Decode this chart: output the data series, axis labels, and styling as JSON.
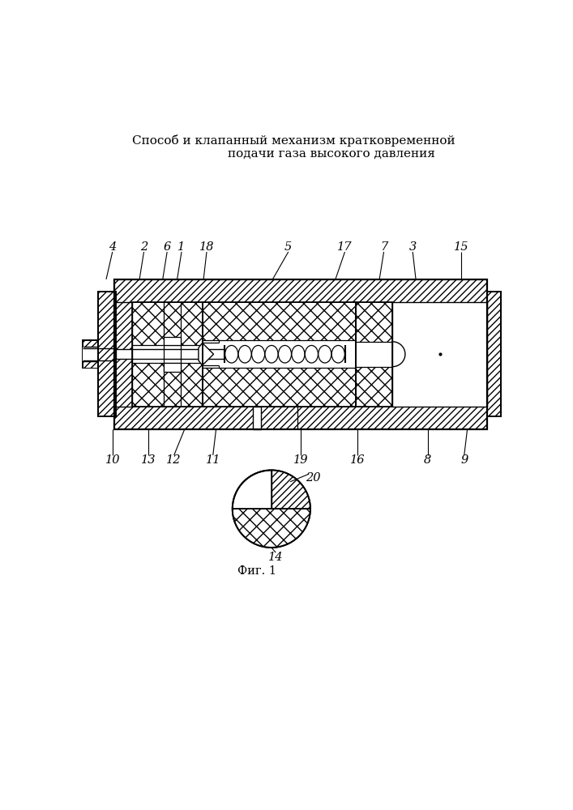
{
  "title_line1": "Способ и клапанный механизм кратковременной",
  "title_line2": "подачи газа высокого давления",
  "fig_label": "Фиг. 1",
  "bg_color": "#ffffff",
  "line_color": "#000000",
  "title_fontsize": 11,
  "label_fontsize": 10.5
}
